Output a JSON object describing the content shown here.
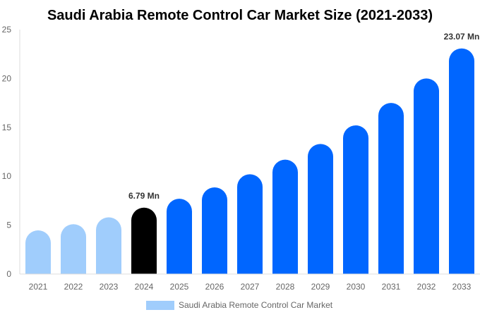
{
  "chart_data": {
    "type": "bar",
    "title": "Saudi Arabia Remote Control Car Market Size (2021-2033)",
    "categories": [
      "2021",
      "2022",
      "2023",
      "2024",
      "2025",
      "2026",
      "2027",
      "2028",
      "2029",
      "2030",
      "2031",
      "2032",
      "2033"
    ],
    "series": [
      {
        "name": "Saudi Arabia Remote Control Car Market",
        "values": [
          4.47,
          5.1,
          5.8,
          6.79,
          7.7,
          8.86,
          10.2,
          11.7,
          13.3,
          15.2,
          17.5,
          20.0,
          23.07
        ]
      }
    ],
    "data_labels": {
      "3": "6.79 Mn",
      "12": "23.07 Mn"
    },
    "ylim": [
      0,
      25
    ],
    "yticks": [
      0,
      5,
      10,
      15,
      20,
      25
    ],
    "grid": false,
    "legend": "bottom",
    "colors": {
      "historical": "#a0cdfc",
      "base_year": "#000000",
      "forecast": "#0066ff",
      "axis": "#dddddd"
    }
  }
}
